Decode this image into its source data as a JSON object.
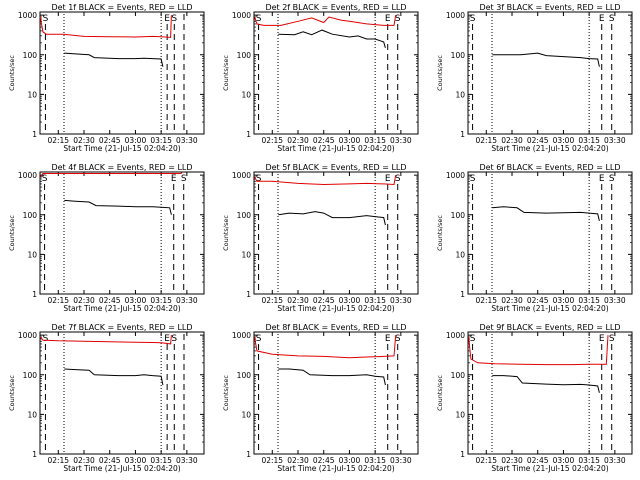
{
  "shared": {
    "ylabel": "Counts/sec",
    "start_time_label": "Start Time (21-Jul-15 02:04:20)",
    "x_ticks": [
      "02:15",
      "02:30",
      "02:45",
      "03:00",
      "03:15",
      "03:30"
    ],
    "y_ticks": [
      "1",
      "10",
      "100",
      "1000"
    ],
    "x_range": [
      "02:04:20",
      "03:40:00"
    ],
    "y_range": [
      1,
      1200
    ],
    "y_scale": "log",
    "colors": {
      "events": "#000000",
      "lld": "#e00000"
    }
  },
  "chart_data": [
    {
      "type": "line",
      "title": "Det 1f BLACK = Events, RED = LLD",
      "markers": [
        {
          "t": "02:07:30",
          "label": "S",
          "style": "dashed"
        },
        {
          "t": "02:18:20",
          "label": "",
          "style": "dotted"
        },
        {
          "t": "03:15:00",
          "label": "",
          "style": "dotted"
        },
        {
          "t": "03:18:30",
          "label": "E",
          "style": "dashed"
        },
        {
          "t": "03:22:40",
          "label": "S",
          "style": "dashed"
        },
        {
          "t": "03:28:20",
          "label": "",
          "style": "dashed"
        }
      ],
      "series": [
        {
          "color": "lld",
          "points": [
            [
              "02:04:30",
              900
            ],
            [
              "02:06:00",
              380
            ],
            [
              "02:08:00",
              330
            ],
            [
              "02:18:00",
              330
            ],
            [
              "02:30:00",
              290
            ],
            [
              "02:45:00",
              285
            ],
            [
              "03:00:00",
              280
            ],
            [
              "03:10:00",
              290
            ],
            [
              "03:15:00",
              285
            ],
            [
              "03:20:30",
              275
            ],
            [
              "03:21:00",
              1000
            ]
          ]
        },
        {
          "color": "events",
          "points": [
            [
              "02:18:30",
              110
            ],
            [
              "02:25:00",
              105
            ],
            [
              "02:33:00",
              100
            ],
            [
              "02:36:00",
              85
            ],
            [
              "02:50:00",
              80
            ],
            [
              "03:00:00",
              80
            ],
            [
              "03:05:00",
              82
            ],
            [
              "03:10:00",
              80
            ],
            [
              "03:15:00",
              78
            ],
            [
              "03:16:00",
              50
            ]
          ]
        }
      ]
    },
    {
      "type": "line",
      "title": "Det 2f BLACK = Events, RED = LLD",
      "markers": [
        {
          "t": "02:07:00",
          "label": "S",
          "style": "dashed"
        },
        {
          "t": "02:18:20",
          "label": "",
          "style": "dotted"
        },
        {
          "t": "03:15:00",
          "label": "",
          "style": "dotted"
        },
        {
          "t": "03:22:20",
          "label": "E",
          "style": "dashed"
        },
        {
          "t": "03:28:10",
          "label": "S",
          "style": "dashed"
        }
      ],
      "series": [
        {
          "color": "lld",
          "points": [
            [
              "02:04:40",
              900
            ],
            [
              "02:06:00",
              600
            ],
            [
              "02:10:00",
              550
            ],
            [
              "02:20:00",
              550
            ],
            [
              "02:30:00",
              700
            ],
            [
              "02:38:00",
              850
            ],
            [
              "02:45:00",
              650
            ],
            [
              "02:48:00",
              900
            ],
            [
              "02:55:00",
              750
            ],
            [
              "03:00:00",
              700
            ],
            [
              "03:10:00",
              600
            ],
            [
              "03:20:00",
              550
            ],
            [
              "03:26:00",
              550
            ],
            [
              "03:27:00",
              1000
            ]
          ]
        },
        {
          "color": "events",
          "points": [
            [
              "02:18:30",
              330
            ],
            [
              "02:28:00",
              320
            ],
            [
              "02:33:00",
              380
            ],
            [
              "02:38:00",
              320
            ],
            [
              "02:44:00",
              420
            ],
            [
              "02:50:00",
              330
            ],
            [
              "03:00:00",
              280
            ],
            [
              "03:05:00",
              300
            ],
            [
              "03:10:00",
              250
            ],
            [
              "03:15:00",
              250
            ],
            [
              "03:20:00",
              210
            ],
            [
              "03:21:00",
              150
            ]
          ]
        }
      ]
    },
    {
      "type": "line",
      "title": "Det 3f BLACK = Events, RED = LLD",
      "markers": [
        {
          "t": "02:07:00",
          "label": "S",
          "style": "dashed"
        },
        {
          "t": "02:18:20",
          "label": "",
          "style": "dotted"
        },
        {
          "t": "03:15:00",
          "label": "",
          "style": "dotted"
        },
        {
          "t": "03:22:20",
          "label": "E",
          "style": "dashed"
        },
        {
          "t": "03:28:10",
          "label": "S",
          "style": "dashed"
        }
      ],
      "series": [
        {
          "color": "events",
          "points": [
            [
              "02:18:30",
              100
            ],
            [
              "02:25:00",
              100
            ],
            [
              "02:35:00",
              100
            ],
            [
              "02:45:00",
              110
            ],
            [
              "02:50:00",
              95
            ],
            [
              "03:00:00",
              90
            ],
            [
              "03:10:00",
              85
            ],
            [
              "03:15:00",
              80
            ],
            [
              "03:20:00",
              78
            ],
            [
              "03:21:00",
              50
            ]
          ]
        }
      ]
    },
    {
      "type": "line",
      "title": "Det 4f BLACK = Events, RED = LLD",
      "markers": [
        {
          "t": "02:07:00",
          "label": "S",
          "style": "dashed"
        },
        {
          "t": "02:18:20",
          "label": "",
          "style": "dotted"
        },
        {
          "t": "03:15:00",
          "label": "",
          "style": "dotted"
        },
        {
          "t": "03:22:20",
          "label": "E",
          "style": "dashed"
        },
        {
          "t": "03:28:10",
          "label": "S",
          "style": "dashed"
        }
      ],
      "series": [
        {
          "color": "lld",
          "points": [
            [
              "02:04:40",
              900
            ],
            [
              "02:06:00",
              1100
            ],
            [
              "02:15:00",
              1100
            ],
            [
              "02:45:00",
              1100
            ],
            [
              "03:15:00",
              1100
            ],
            [
              "03:26:30",
              1100
            ],
            [
              "03:27:30",
              1200
            ]
          ]
        },
        {
          "color": "events",
          "points": [
            [
              "02:18:30",
              230
            ],
            [
              "02:25:00",
              220
            ],
            [
              "02:33:00",
              210
            ],
            [
              "02:37:00",
              170
            ],
            [
              "02:50:00",
              165
            ],
            [
              "03:00:00",
              160
            ],
            [
              "03:10:00",
              160
            ],
            [
              "03:15:00",
              155
            ],
            [
              "03:20:00",
              150
            ],
            [
              "03:21:00",
              100
            ]
          ]
        }
      ]
    },
    {
      "type": "line",
      "title": "Det 5f BLACK = Events, RED = LLD",
      "markers": [
        {
          "t": "02:07:00",
          "label": "S",
          "style": "dashed"
        },
        {
          "t": "02:18:20",
          "label": "",
          "style": "dotted"
        },
        {
          "t": "03:15:00",
          "label": "",
          "style": "dotted"
        },
        {
          "t": "03:22:20",
          "label": "E",
          "style": "dashed"
        },
        {
          "t": "03:28:10",
          "label": "S",
          "style": "dashed"
        }
      ],
      "series": [
        {
          "color": "lld",
          "points": [
            [
              "02:04:40",
              900
            ],
            [
              "02:06:00",
              700
            ],
            [
              "02:15:00",
              700
            ],
            [
              "02:30:00",
              620
            ],
            [
              "02:45:00",
              580
            ],
            [
              "03:00:00",
              600
            ],
            [
              "03:10:00",
              620
            ],
            [
              "03:20:00",
              600
            ],
            [
              "03:26:00",
              580
            ],
            [
              "03:27:00",
              1000
            ]
          ]
        },
        {
          "color": "events",
          "points": [
            [
              "02:18:30",
              100
            ],
            [
              "02:25:00",
              110
            ],
            [
              "02:33:00",
              105
            ],
            [
              "02:40:00",
              120
            ],
            [
              "02:45:00",
              110
            ],
            [
              "02:50:00",
              85
            ],
            [
              "03:00:00",
              85
            ],
            [
              "03:10:00",
              95
            ],
            [
              "03:15:00",
              90
            ],
            [
              "03:20:00",
              85
            ],
            [
              "03:21:00",
              55
            ]
          ]
        }
      ]
    },
    {
      "type": "line",
      "title": "Det 6f BLACK = Events, RED = LLD",
      "markers": [
        {
          "t": "02:07:00",
          "label": "S",
          "style": "dashed"
        },
        {
          "t": "02:18:20",
          "label": "",
          "style": "dotted"
        },
        {
          "t": "03:15:00",
          "label": "",
          "style": "dotted"
        },
        {
          "t": "03:22:20",
          "label": "E",
          "style": "dashed"
        },
        {
          "t": "03:28:10",
          "label": "S",
          "style": "dashed"
        }
      ],
      "series": [
        {
          "color": "events",
          "points": [
            [
              "02:18:30",
              150
            ],
            [
              "02:25:00",
              160
            ],
            [
              "02:33:00",
              150
            ],
            [
              "02:37:00",
              115
            ],
            [
              "02:50:00",
              110
            ],
            [
              "03:00:00",
              112
            ],
            [
              "03:10:00",
              115
            ],
            [
              "03:15:00",
              110
            ],
            [
              "03:20:00",
              105
            ],
            [
              "03:21:00",
              70
            ]
          ]
        }
      ]
    },
    {
      "type": "line",
      "title": "Det 7f BLACK = Events, RED = LLD",
      "markers": [
        {
          "t": "02:07:30",
          "label": "S",
          "style": "dashed"
        },
        {
          "t": "02:18:20",
          "label": "",
          "style": "dotted"
        },
        {
          "t": "03:15:00",
          "label": "",
          "style": "dotted"
        },
        {
          "t": "03:18:30",
          "label": "E",
          "style": "dashed"
        },
        {
          "t": "03:22:40",
          "label": "S",
          "style": "dashed"
        },
        {
          "t": "03:28:20",
          "label": "",
          "style": "dashed"
        }
      ],
      "series": [
        {
          "color": "lld",
          "points": [
            [
              "02:04:30",
              900
            ],
            [
              "02:06:00",
              750
            ],
            [
              "02:15:00",
              720
            ],
            [
              "02:30:00",
              700
            ],
            [
              "02:45:00",
              680
            ],
            [
              "03:00:00",
              660
            ],
            [
              "03:10:00",
              650
            ],
            [
              "03:15:00",
              640
            ],
            [
              "03:20:30",
              600
            ],
            [
              "03:21:00",
              1000
            ]
          ]
        },
        {
          "color": "events",
          "points": [
            [
              "02:18:30",
              140
            ],
            [
              "02:25:00",
              135
            ],
            [
              "02:33:00",
              130
            ],
            [
              "02:36:00",
              100
            ],
            [
              "02:50:00",
              95
            ],
            [
              "03:00:00",
              95
            ],
            [
              "03:05:00",
              100
            ],
            [
              "03:10:00",
              95
            ],
            [
              "03:15:00",
              92
            ],
            [
              "03:16:00",
              55
            ]
          ]
        }
      ]
    },
    {
      "type": "line",
      "title": "Det 8f BLACK = Events, RED = LLD",
      "markers": [
        {
          "t": "02:07:00",
          "label": "S",
          "style": "dashed"
        },
        {
          "t": "02:18:20",
          "label": "",
          "style": "dotted"
        },
        {
          "t": "03:15:00",
          "label": "",
          "style": "dotted"
        },
        {
          "t": "03:22:20",
          "label": "E",
          "style": "dashed"
        },
        {
          "t": "03:28:10",
          "label": "S",
          "style": "dashed"
        }
      ],
      "series": [
        {
          "color": "lld",
          "points": [
            [
              "02:04:40",
              900
            ],
            [
              "02:06:00",
              400
            ],
            [
              "02:15:00",
              330
            ],
            [
              "02:30:00",
              300
            ],
            [
              "02:45:00",
              290
            ],
            [
              "03:00:00",
              270
            ],
            [
              "03:10:00",
              280
            ],
            [
              "03:20:00",
              290
            ],
            [
              "03:26:00",
              300
            ],
            [
              "03:27:00",
              1000
            ]
          ]
        },
        {
          "color": "events",
          "points": [
            [
              "02:18:30",
              140
            ],
            [
              "02:25:00",
              140
            ],
            [
              "02:33:00",
              130
            ],
            [
              "02:37:00",
              100
            ],
            [
              "02:50:00",
              95
            ],
            [
              "03:00:00",
              95
            ],
            [
              "03:10:00",
              100
            ],
            [
              "03:15:00",
              92
            ],
            [
              "03:20:00",
              88
            ],
            [
              "03:21:00",
              55
            ]
          ]
        }
      ]
    },
    {
      "type": "line",
      "title": "Det 9f BLACK = Events, RED = LLD",
      "markers": [
        {
          "t": "02:07:00",
          "label": "S",
          "style": "dashed"
        },
        {
          "t": "02:18:20",
          "label": "",
          "style": "dotted"
        },
        {
          "t": "03:15:00",
          "label": "",
          "style": "dotted"
        },
        {
          "t": "03:22:20",
          "label": "E",
          "style": "dashed"
        },
        {
          "t": "03:28:10",
          "label": "S",
          "style": "dashed"
        }
      ],
      "series": [
        {
          "color": "lld",
          "points": [
            [
              "02:04:40",
              900
            ],
            [
              "02:06:00",
              250
            ],
            [
              "02:10:00",
              200
            ],
            [
              "02:20:00",
              190
            ],
            [
              "02:35:00",
              185
            ],
            [
              "02:50:00",
              180
            ],
            [
              "03:05:00",
              180
            ],
            [
              "03:15:00",
              185
            ],
            [
              "03:25:00",
              185
            ],
            [
              "03:26:00",
              1000
            ]
          ]
        },
        {
          "color": "events",
          "points": [
            [
              "02:18:30",
              95
            ],
            [
              "02:25:00",
              95
            ],
            [
              "02:33:00",
              90
            ],
            [
              "02:36:00",
              62
            ],
            [
              "02:50:00",
              58
            ],
            [
              "03:00:00",
              56
            ],
            [
              "03:10:00",
              57
            ],
            [
              "03:15:00",
              55
            ],
            [
              "03:20:00",
              52
            ],
            [
              "03:21:00",
              35
            ]
          ]
        }
      ]
    }
  ]
}
